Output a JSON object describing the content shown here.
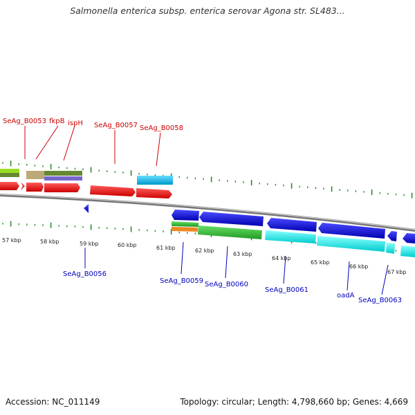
{
  "title": "Salmonella enterica subsp. enterica serovar Agona str. SL483...",
  "footer": {
    "accession": "Accession: NC_011149",
    "summary": "Topology: circular; Length: 4,798,660 bp; Genes: 4,669"
  },
  "scale": {
    "unit": "kbp",
    "labels": [
      "57 kbp",
      "58 kbp",
      "59 kbp",
      "60 kbp",
      "61 kbp",
      "62 kbp",
      "63 kbp",
      "64 kbp",
      "65 kbp",
      "66 kbp",
      "67 kbp"
    ]
  },
  "genes": {
    "forward": [
      {
        "id": "SeAg_B0053",
        "label": "SeAg_B0053"
      },
      {
        "id": "fkpB",
        "label": "fkpB"
      },
      {
        "id": "ispH",
        "label": "ispH"
      },
      {
        "id": "SeAg_B0057",
        "label": "SeAg_B0057"
      },
      {
        "id": "SeAg_B0058",
        "label": "SeAg_B0058"
      }
    ],
    "reverse": [
      {
        "id": "SeAg_B0056",
        "label": "SeAg_B0056"
      },
      {
        "id": "SeAg_B0059",
        "label": "SeAg_B0059"
      },
      {
        "id": "SeAg_B0060",
        "label": "SeAg_B0060"
      },
      {
        "id": "SeAg_B0061",
        "label": "SeAg_B0061"
      },
      {
        "id": "oadA",
        "label": "oadA"
      },
      {
        "id": "SeAg_B0063",
        "label": "SeAg_B0063"
      }
    ]
  },
  "colors": {
    "forward_label": "#cc0000",
    "reverse_label": "#0000bb",
    "backbone": "#888888",
    "tick": "#2a8a2a",
    "cds_red": "#ee1111",
    "cds_blue": "#1111dd",
    "cds_green": "#33cc33",
    "cds_cyan": "#11eeee",
    "cds_lightblue": "#22bbee",
    "cds_orange": "#ee8822",
    "cds_khaki": "#bbaa77",
    "cds_olive": "#668833",
    "cds_purple": "#7766cc",
    "cds_lime": "#99dd22"
  }
}
